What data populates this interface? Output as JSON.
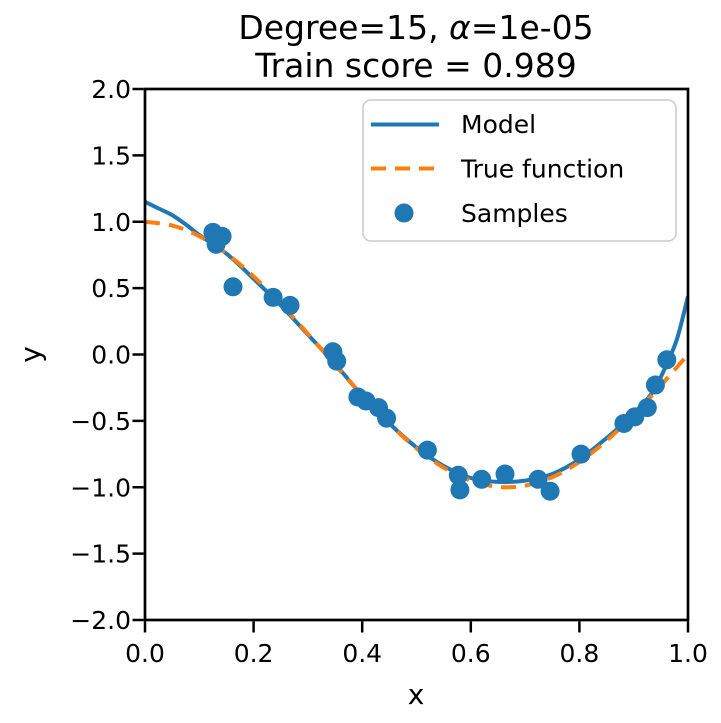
{
  "figure": {
    "title_line1_prefix": "Degree=15, ",
    "title_alpha": "α",
    "title_line1_suffix": "=1e-05",
    "title_line2": "Train score = 0.989",
    "background_color": "#ffffff",
    "spine_color": "#000000"
  },
  "chart_data": {
    "type": "line",
    "title": "Degree=15, α=1e-05\nTrain score = 0.989",
    "xlabel": "x",
    "ylabel": "y",
    "xlim": [
      0.0,
      1.0
    ],
    "ylim": [
      -2.0,
      2.0
    ],
    "grid": false,
    "x_tick_values": [
      0.0,
      0.2,
      0.4,
      0.6,
      0.8,
      1.0
    ],
    "x_tick_labels": [
      "0.0",
      "0.2",
      "0.4",
      "0.6",
      "0.8",
      "1.0"
    ],
    "y_tick_values": [
      2.0,
      1.5,
      1.0,
      0.5,
      0.0,
      -0.5,
      -1.0,
      -1.5,
      -2.0
    ],
    "y_tick_labels": [
      "2.0",
      "1.5",
      "1.0",
      "0.5",
      "0.0",
      "−0.5",
      "−1.0",
      "−1.5",
      "−2.0"
    ],
    "legend": {
      "position": "upper right",
      "entries": [
        "Model",
        "True function",
        "Samples"
      ]
    },
    "series": [
      {
        "name": "Model",
        "type": "line",
        "style": "solid",
        "color": "#1f77b4",
        "points": [
          [
            0.0,
            1.15
          ],
          [
            0.025,
            1.1
          ],
          [
            0.05,
            1.05
          ],
          [
            0.075,
            0.98
          ],
          [
            0.1,
            0.9
          ],
          [
            0.15,
            0.76
          ],
          [
            0.2,
            0.57
          ],
          [
            0.25,
            0.37
          ],
          [
            0.3,
            0.15
          ],
          [
            0.35,
            -0.07
          ],
          [
            0.4,
            -0.31
          ],
          [
            0.45,
            -0.52
          ],
          [
            0.5,
            -0.7
          ],
          [
            0.55,
            -0.84
          ],
          [
            0.6,
            -0.93
          ],
          [
            0.65,
            -0.96
          ],
          [
            0.7,
            -0.95
          ],
          [
            0.75,
            -0.9
          ],
          [
            0.8,
            -0.79
          ],
          [
            0.85,
            -0.63
          ],
          [
            0.875,
            -0.54
          ],
          [
            0.9,
            -0.44
          ],
          [
            0.92,
            -0.36
          ],
          [
            0.94,
            -0.25
          ],
          [
            0.96,
            -0.08
          ],
          [
            0.98,
            0.12
          ],
          [
            1.0,
            0.44
          ]
        ]
      },
      {
        "name": "True function",
        "type": "line",
        "style": "dashed",
        "color": "#ff7f0e",
        "formula": "cos(1.5*pi*x)",
        "points": [
          [
            0.0,
            1.0
          ],
          [
            0.05,
            0.972
          ],
          [
            0.1,
            0.891
          ],
          [
            0.15,
            0.76
          ],
          [
            0.2,
            0.588
          ],
          [
            0.25,
            0.383
          ],
          [
            0.3,
            0.156
          ],
          [
            0.35,
            -0.078
          ],
          [
            0.4,
            -0.309
          ],
          [
            0.45,
            -0.522
          ],
          [
            0.5,
            -0.707
          ],
          [
            0.55,
            -0.853
          ],
          [
            0.6,
            -0.951
          ],
          [
            0.65,
            -0.997
          ],
          [
            0.7,
            -0.988
          ],
          [
            0.75,
            -0.924
          ],
          [
            0.8,
            -0.809
          ],
          [
            0.85,
            -0.649
          ],
          [
            0.9,
            -0.454
          ],
          [
            0.95,
            -0.233
          ],
          [
            1.0,
            0.0
          ]
        ]
      },
      {
        "name": "Samples",
        "type": "scatter",
        "color": "#1f77b4",
        "points": [
          [
            0.125,
            0.92
          ],
          [
            0.131,
            0.83
          ],
          [
            0.142,
            0.89
          ],
          [
            0.162,
            0.51
          ],
          [
            0.236,
            0.43
          ],
          [
            0.267,
            0.37
          ],
          [
            0.346,
            0.02
          ],
          [
            0.353,
            -0.05
          ],
          [
            0.392,
            -0.32
          ],
          [
            0.407,
            -0.35
          ],
          [
            0.43,
            -0.4
          ],
          [
            0.445,
            -0.48
          ],
          [
            0.52,
            -0.72
          ],
          [
            0.577,
            -0.91
          ],
          [
            0.58,
            -1.02
          ],
          [
            0.62,
            -0.94
          ],
          [
            0.663,
            -0.9
          ],
          [
            0.724,
            -0.94
          ],
          [
            0.746,
            -1.03
          ],
          [
            0.803,
            -0.75
          ],
          [
            0.882,
            -0.52
          ],
          [
            0.902,
            -0.47
          ],
          [
            0.925,
            -0.4
          ],
          [
            0.94,
            -0.23
          ],
          [
            0.961,
            -0.04
          ]
        ]
      }
    ]
  }
}
